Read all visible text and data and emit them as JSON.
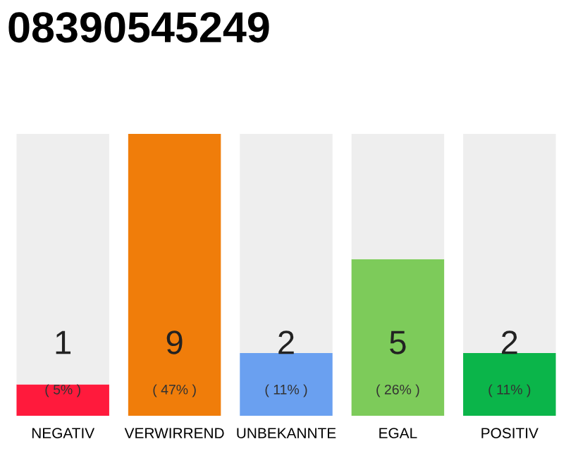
{
  "chart_data": {
    "type": "bar",
    "title": "08390545249",
    "stacked": true,
    "categories": [
      "NEGATIV",
      "VERWIRREND",
      "UNBEKANNTE",
      "EGAL",
      "POSITIV"
    ],
    "series": [
      {
        "colors": [
          "#ff1a3c",
          "#f07d0a",
          "#6aa0f0",
          "#7dcb5a",
          "#0bb54a"
        ],
        "values": [
          1,
          9,
          2,
          5,
          2
        ],
        "value_labels": [
          "1",
          "9",
          "2",
          "5",
          "2"
        ]
      },
      {
        "color": "#eeeeee",
        "values": [
          8,
          0,
          7,
          4,
          7
        ]
      }
    ],
    "ylim": [
      0,
      9
    ],
    "grid": false,
    "legend": false,
    "annotations": [
      "( 5% )",
      "( 47% )",
      "( 11% )",
      "( 26% )",
      "( 11% )"
    ]
  }
}
